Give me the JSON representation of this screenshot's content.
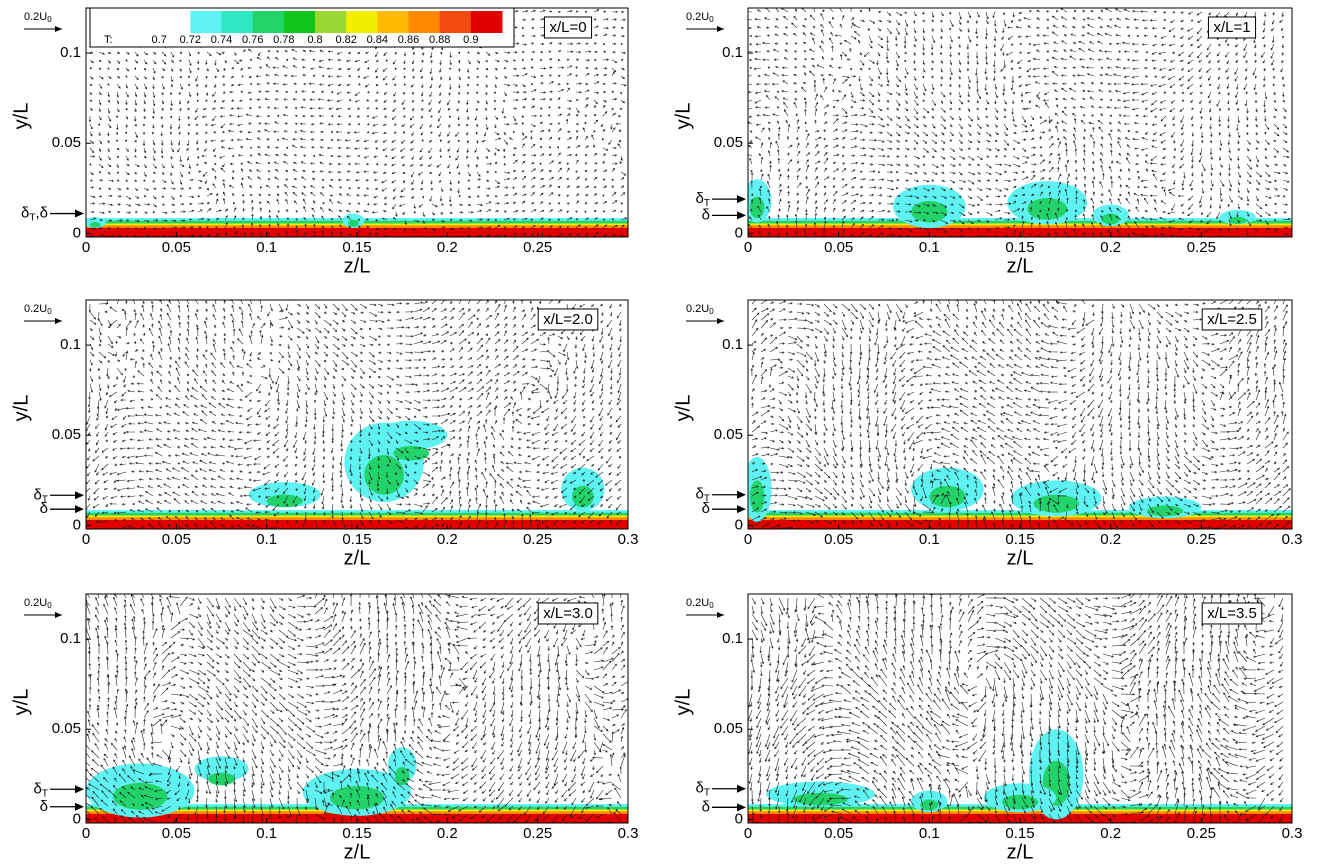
{
  "chart_data": [
    {
      "type": "quiver",
      "title": "x/L=0",
      "xlabel": "z/L",
      "ylabel": "y/L",
      "xlim": [
        0,
        0.3
      ],
      "ylim": [
        -0.002,
        0.125
      ],
      "xticks": [
        0,
        0.05,
        0.1,
        0.15,
        0.2,
        0.25
      ],
      "yticks": [
        0,
        0.05,
        0.1
      ],
      "reference": {
        "text": "0.2U",
        "sub": "0"
      },
      "markers": [
        {
          "text": "δ",
          "sub": "T",
          "after": ",δ",
          "value": 0.011
        }
      ],
      "colorbar": {
        "label": "T:",
        "levels": [
          0.7,
          0.72,
          0.74,
          0.76,
          0.78,
          0.8,
          0.82,
          0.84,
          0.86,
          0.88,
          0.9
        ],
        "colors": [
          "#ffffff",
          "#ffffff",
          "#5ff2f2",
          "#2de8c0",
          "#22d36a",
          "#11c41a",
          "#99d833",
          "#f2ee00",
          "#ffbb00",
          "#ff8a00",
          "#f24a10",
          "#e00000"
        ]
      }
    },
    {
      "type": "quiver",
      "title": "x/L=1",
      "xlabel": "z/L",
      "ylabel": "y/L",
      "xlim": [
        0,
        0.3
      ],
      "ylim": [
        -0.002,
        0.125
      ],
      "xticks": [
        0,
        0.05,
        0.1,
        0.15,
        0.2,
        0.25
      ],
      "yticks": [
        0,
        0.05,
        0.1
      ],
      "reference": {
        "text": "0.2U",
        "sub": "0"
      },
      "markers": [
        {
          "text": "δ",
          "sub": "T",
          "value": 0.019
        },
        {
          "text": "δ",
          "value": 0.01
        }
      ]
    },
    {
      "type": "quiver",
      "title": "x/L=2.0",
      "xlabel": "z/L",
      "ylabel": "y/L",
      "xlim": [
        0,
        0.3
      ],
      "ylim": [
        -0.002,
        0.125
      ],
      "xticks": [
        0,
        0.05,
        0.1,
        0.15,
        0.2,
        0.25,
        0.3
      ],
      "yticks": [
        0,
        0.05,
        0.1
      ],
      "reference": {
        "text": "0.2U",
        "sub": "0"
      },
      "markers": [
        {
          "text": "δ",
          "sub": "T",
          "value": 0.0167
        },
        {
          "text": "δ",
          "value": 0.009
        }
      ]
    },
    {
      "type": "quiver",
      "title": "x/L=2.5",
      "xlabel": "z/L",
      "ylabel": "y/L",
      "xlim": [
        0,
        0.3
      ],
      "ylim": [
        -0.002,
        0.125
      ],
      "xticks": [
        0,
        0.05,
        0.1,
        0.15,
        0.2,
        0.25,
        0.3
      ],
      "yticks": [
        0,
        0.05,
        0.1
      ],
      "reference": {
        "text": "0.2U",
        "sub": "0"
      },
      "markers": [
        {
          "text": "δ",
          "sub": "T",
          "value": 0.017
        },
        {
          "text": "δ",
          "value": 0.009
        }
      ]
    },
    {
      "type": "quiver",
      "title": "x/L=3.0",
      "xlabel": "z/L",
      "ylabel": "y/L",
      "xlim": [
        0,
        0.3
      ],
      "ylim": [
        -0.002,
        0.125
      ],
      "xticks": [
        0,
        0.05,
        0.1,
        0.15,
        0.2,
        0.25,
        0.3
      ],
      "yticks": [
        0,
        0.05,
        0.1
      ],
      "reference": {
        "text": "0.2U",
        "sub": "0"
      },
      "markers": [
        {
          "text": "δ",
          "sub": "T",
          "value": 0.0167
        },
        {
          "text": "δ",
          "value": 0.007
        }
      ]
    },
    {
      "type": "quiver",
      "title": "x/L=3.5",
      "xlabel": "z/L",
      "ylabel": "y/L",
      "xlim": [
        0,
        0.3
      ],
      "ylim": [
        -0.002,
        0.125
      ],
      "xticks": [
        0,
        0.05,
        0.1,
        0.15,
        0.2,
        0.25,
        0.3
      ],
      "yticks": [
        0,
        0.05,
        0.1
      ],
      "reference": {
        "text": "0.2U",
        "sub": "0"
      },
      "markers": [
        {
          "text": "δ",
          "sub": "T",
          "value": 0.017
        },
        {
          "text": "δ",
          "value": 0.0067
        }
      ]
    }
  ]
}
